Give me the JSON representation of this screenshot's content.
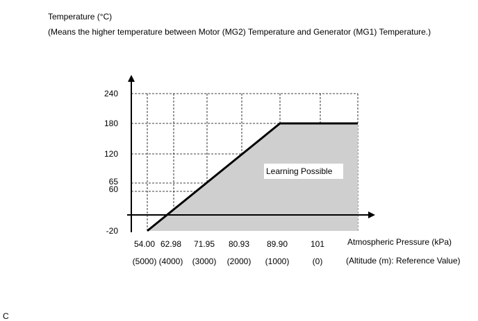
{
  "chart_data": {
    "type": "area",
    "title": "Temperature (°C)",
    "subtitle": "(Means the higher temperature between Motor (MG2) Temperature and Generator (MG1) Temperature.)",
    "ylabel": "Temperature (°C)",
    "xlabel": "Atmospheric Pressure (kPa)",
    "xlabel2": "(Altitude (m): Reference Value)",
    "x_categories": [
      "54.00",
      "62.98",
      "71.95",
      "80.93",
      "89.90",
      "101"
    ],
    "x_categories_altitude": [
      "(5000)",
      "(4000)",
      "(3000)",
      "(2000)",
      "(1000)",
      "(0)"
    ],
    "y_ticks": [
      "240",
      "180",
      "120",
      "65",
      "60",
      "-20"
    ],
    "y_values": [
      240,
      180,
      120,
      65,
      60,
      -20
    ],
    "series": [
      {
        "x": [
          54.0,
          89.9,
          101
        ],
        "y": [
          -20,
          180,
          180
        ]
      }
    ],
    "region_label": "Learning Possible",
    "grid": true,
    "figure_id": "C"
  }
}
